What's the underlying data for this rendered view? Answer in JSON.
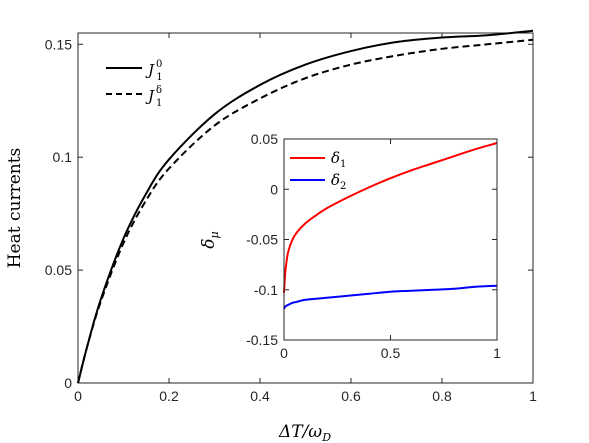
{
  "chart_data": [
    {
      "type": "line",
      "title": "",
      "xlabel": "ΔT/ω_D",
      "ylabel": "Heat currents",
      "xlim": [
        0,
        1
      ],
      "ylim": [
        0,
        0.155
      ],
      "xticks": [
        "0",
        "0.2",
        "0.4",
        "0.6",
        "0.8",
        "1"
      ],
      "yticks": [
        "0",
        "0.05",
        "0.1",
        "0.15"
      ],
      "grid": false,
      "legend": "top-left",
      "x": [
        0,
        0.02,
        0.05,
        0.1,
        0.15,
        0.2,
        0.3,
        0.4,
        0.5,
        0.6,
        0.7,
        0.8,
        0.9,
        1.0
      ],
      "series": [
        {
          "name": "J_1^0",
          "legend_main": "J",
          "legend_sub": "1",
          "legend_sup": "0",
          "style": "solid",
          "color": "#000000",
          "values": [
            0,
            0.016,
            0.037,
            0.064,
            0.084,
            0.099,
            0.119,
            0.132,
            0.141,
            0.147,
            0.151,
            0.153,
            0.154,
            0.156
          ]
        },
        {
          "name": "J_1^δ",
          "legend_main": "J",
          "legend_sub": "1",
          "legend_sup": "δ",
          "style": "dashed",
          "color": "#000000",
          "values": [
            0,
            0.016,
            0.036,
            0.062,
            0.081,
            0.095,
            0.114,
            0.126,
            0.135,
            0.141,
            0.145,
            0.148,
            0.15,
            0.152
          ]
        }
      ]
    },
    {
      "type": "line",
      "title": "",
      "xlabel": "",
      "ylabel": "δ_μ",
      "xlim": [
        0,
        1
      ],
      "ylim": [
        -0.15,
        0.05
      ],
      "xticks": [
        "0",
        "0.5",
        "1"
      ],
      "yticks": [
        "0.05",
        "0",
        "-0.05",
        "-0.1",
        "-0.15"
      ],
      "grid": false,
      "legend": "top-left",
      "x": [
        0,
        0.005,
        0.01,
        0.02,
        0.04,
        0.06,
        0.1,
        0.15,
        0.2,
        0.3,
        0.4,
        0.5,
        0.6,
        0.7,
        0.8,
        0.9,
        1.0
      ],
      "series": [
        {
          "name": "δ_1",
          "legend_main": "δ",
          "legend_sub": "1",
          "color": "#ff0000",
          "values": [
            -0.103,
            -0.085,
            -0.075,
            -0.062,
            -0.05,
            -0.043,
            -0.034,
            -0.026,
            -0.019,
            -0.008,
            0.002,
            0.011,
            0.019,
            0.026,
            0.033,
            0.04,
            0.046
          ]
        },
        {
          "name": "δ_2",
          "legend_main": "δ",
          "legend_sub": "2",
          "color": "#0000ff",
          "values": [
            -0.119,
            -0.117,
            -0.116,
            -0.115,
            -0.113,
            -0.112,
            -0.11,
            -0.109,
            -0.108,
            -0.106,
            -0.104,
            -0.102,
            -0.101,
            -0.1,
            -0.099,
            -0.097,
            -0.096
          ]
        }
      ]
    }
  ]
}
